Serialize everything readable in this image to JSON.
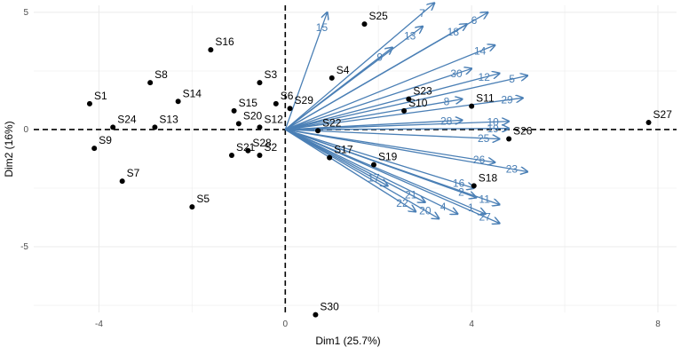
{
  "chart_data": {
    "type": "scatter",
    "subtype": "pca-biplot",
    "xlabel": "Dim1 (25.7%)",
    "ylabel": "Dim2 (16%)",
    "xlim": [
      -5.4,
      8.4
    ],
    "ylim": [
      -7.8,
      5.3
    ],
    "xticks": [
      -4,
      0,
      4,
      8
    ],
    "yticks": [
      -5,
      0,
      5
    ],
    "grid": true,
    "zero_lines": "dashed",
    "colors": {
      "points": "#000000",
      "arrows": "#4a7fb5"
    },
    "points": [
      {
        "label": "S1",
        "x": -4.2,
        "y": 1.1
      },
      {
        "label": "S2",
        "x": -0.55,
        "y": -1.1
      },
      {
        "label": "S3",
        "x": -0.55,
        "y": 2.0
      },
      {
        "label": "S4",
        "x": 1.0,
        "y": 2.2
      },
      {
        "label": "S5",
        "x": -2.0,
        "y": -3.3
      },
      {
        "label": "S6",
        "x": -0.2,
        "y": 1.1
      },
      {
        "label": "S7",
        "x": -3.5,
        "y": -2.2
      },
      {
        "label": "S8",
        "x": -2.9,
        "y": 2.0
      },
      {
        "label": "S9",
        "x": -4.1,
        "y": -0.8
      },
      {
        "label": "S10",
        "x": 2.55,
        "y": 0.8
      },
      {
        "label": "S11",
        "x": 4.0,
        "y": 1.0
      },
      {
        "label": "S12",
        "x": -0.55,
        "y": 0.1
      },
      {
        "label": "S13",
        "x": -2.8,
        "y": 0.1
      },
      {
        "label": "S14",
        "x": -2.3,
        "y": 1.2
      },
      {
        "label": "S15",
        "x": -1.1,
        "y": 0.8
      },
      {
        "label": "S16",
        "x": -1.6,
        "y": 3.4
      },
      {
        "label": "S17",
        "x": 0.95,
        "y": -1.2
      },
      {
        "label": "S18",
        "x": 4.05,
        "y": -2.4
      },
      {
        "label": "S19",
        "x": 1.9,
        "y": -1.5
      },
      {
        "label": "S20",
        "x": -1.0,
        "y": 0.25
      },
      {
        "label": "S21",
        "x": -1.15,
        "y": -1.1
      },
      {
        "label": "S22",
        "x": 0.7,
        "y": -0.05
      },
      {
        "label": "S23",
        "x": 2.65,
        "y": 1.3
      },
      {
        "label": "S24",
        "x": -3.7,
        "y": 0.1
      },
      {
        "label": "S25",
        "x": 1.7,
        "y": 4.5
      },
      {
        "label": "S26",
        "x": 4.8,
        "y": -0.4
      },
      {
        "label": "S27",
        "x": 7.8,
        "y": 0.3
      },
      {
        "label": "S28",
        "x": -0.8,
        "y": -0.9
      },
      {
        "label": "S29",
        "x": 0.1,
        "y": 0.9
      },
      {
        "label": "S30",
        "x": 0.65,
        "y": -7.9
      }
    ],
    "variables": [
      {
        "label": "1",
        "x": 4.3,
        "y": -3.6
      },
      {
        "label": "2",
        "x": 4.1,
        "y": -2.9
      },
      {
        "label": "4",
        "x": 3.7,
        "y": -3.6
      },
      {
        "label": "5",
        "x": 5.2,
        "y": 2.3
      },
      {
        "label": "6",
        "x": 4.35,
        "y": 5.0
      },
      {
        "label": "7",
        "x": 3.2,
        "y": 5.4
      },
      {
        "label": "8",
        "x": 3.8,
        "y": 1.3
      },
      {
        "label": "9",
        "x": 2.3,
        "y": 3.5
      },
      {
        "label": "10",
        "x": 4.8,
        "y": 0.35
      },
      {
        "label": "11",
        "x": 4.6,
        "y": -3.2
      },
      {
        "label": "12",
        "x": 4.6,
        "y": 2.4
      },
      {
        "label": "13",
        "x": 2.95,
        "y": 4.4
      },
      {
        "label": "14",
        "x": 4.5,
        "y": 3.6
      },
      {
        "label": "15",
        "x": 0.9,
        "y": 5.0
      },
      {
        "label": "16",
        "x": 4.05,
        "y": -2.5
      },
      {
        "label": "17",
        "x": 2.2,
        "y": -2.4
      },
      {
        "label": "18",
        "x": 3.9,
        "y": 4.5
      },
      {
        "label": "19",
        "x": 4.8,
        "y": 0.05
      },
      {
        "label": "20",
        "x": 3.3,
        "y": -3.8
      },
      {
        "label": "21",
        "x": 3.0,
        "y": -3.1
      },
      {
        "label": "22",
        "x": 2.8,
        "y": -3.5
      },
      {
        "label": "23",
        "x": 5.2,
        "y": -1.8
      },
      {
        "label": "25",
        "x": 4.6,
        "y": -0.4
      },
      {
        "label": "26",
        "x": 4.5,
        "y": -1.4
      },
      {
        "label": "27",
        "x": 4.6,
        "y": -4.0
      },
      {
        "label": "28",
        "x": 3.8,
        "y": 0.4
      },
      {
        "label": "29",
        "x": 5.1,
        "y": 1.35
      },
      {
        "label": "30",
        "x": 4.0,
        "y": 2.6
      }
    ]
  }
}
